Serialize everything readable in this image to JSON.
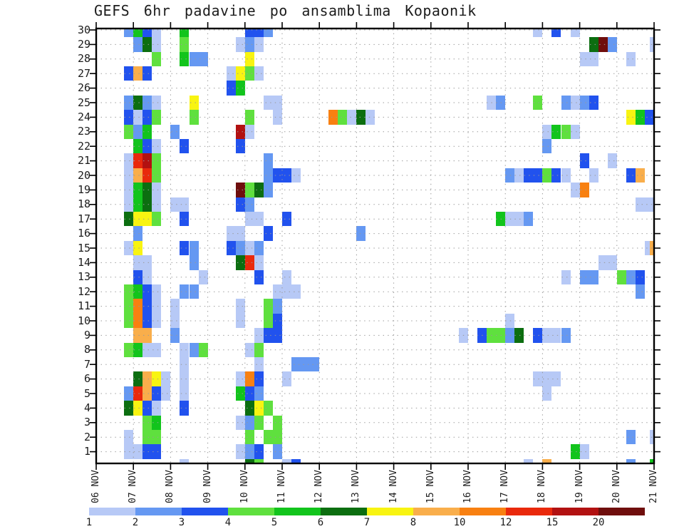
{
  "title": "GEFS 6hr padavine po ansamblima Kopaonik",
  "chart_data": {
    "type": "heatmap",
    "title": "GEFS 6hr padavine po ansamblima Kopaonik",
    "grid": "dotted",
    "legend_position": "bottom",
    "x_axis": {
      "tick_labels": [
        "06 NOV",
        "07 NOV",
        "08 NOV",
        "09 NOV",
        "10 NOV",
        "11 NOV",
        "12 NOV",
        "13 NOV",
        "14 NOV",
        "15 NOV",
        "16 NOV",
        "17 NOV",
        "18 NOV",
        "19 NOV",
        "20 NOV",
        "21 NOV"
      ],
      "steps_per_day": 4,
      "total_columns": 61
    },
    "y_axis": {
      "tick_labels": [
        "30",
        "29",
        "28",
        "27",
        "26",
        "25",
        "24",
        "23",
        "22",
        "21",
        "20",
        "19",
        "18",
        "17",
        "16",
        "15",
        "14",
        "13",
        "12",
        "11",
        "10",
        "9",
        "8",
        "7",
        "6",
        "5",
        "4",
        "3",
        "2",
        "1"
      ]
    },
    "colorbar": {
      "tick_labels": [
        "1",
        "2",
        "3",
        "4",
        "5",
        "6",
        "7",
        "8",
        "10",
        "12",
        "15",
        "20"
      ],
      "colors": [
        "#b7c9f6",
        "#6598f2",
        "#2152ee",
        "#5fe03e",
        "#12c41c",
        "#0c6e10",
        "#f8f411",
        "#f9ae4b",
        "#f88011",
        "#e9290c",
        "#b21111",
        "#6f0e0d"
      ]
    },
    "cells_format": "each cell = [column_index, color_index]; column 0 = 06 NOV 00h, 4 columns per day; color_index refers to colorbar.colors",
    "rows": [
      {
        "member": 30,
        "cells": [
          [
            3,
            1
          ],
          [
            4,
            4
          ],
          [
            5,
            2
          ],
          [
            6,
            0
          ],
          [
            9,
            4
          ],
          [
            16,
            2
          ],
          [
            17,
            2
          ],
          [
            18,
            1
          ],
          [
            47,
            0
          ],
          [
            49,
            2
          ],
          [
            51,
            0
          ]
        ]
      },
      {
        "member": 29,
        "cells": [
          [
            4,
            1
          ],
          [
            5,
            5
          ],
          [
            6,
            0
          ],
          [
            9,
            3
          ],
          [
            15,
            0
          ],
          [
            16,
            1
          ],
          [
            17,
            0
          ],
          [
            53,
            5
          ],
          [
            54,
            11
          ],
          [
            55,
            1
          ],
          [
            60,
            0
          ]
        ]
      },
      {
        "member": 28,
        "cells": [
          [
            6,
            3
          ],
          [
            9,
            4
          ],
          [
            10,
            1
          ],
          [
            11,
            1
          ],
          [
            16,
            6
          ],
          [
            52,
            0
          ],
          [
            53,
            0
          ],
          [
            57,
            0
          ]
        ]
      },
      {
        "member": 27,
        "cells": [
          [
            3,
            2
          ],
          [
            4,
            7
          ],
          [
            5,
            2
          ],
          [
            14,
            0
          ],
          [
            15,
            6
          ],
          [
            16,
            3
          ],
          [
            17,
            0
          ]
        ]
      },
      {
        "member": 26,
        "cells": [
          [
            14,
            2
          ],
          [
            15,
            4
          ]
        ]
      },
      {
        "member": 25,
        "cells": [
          [
            3,
            1
          ],
          [
            4,
            5
          ],
          [
            5,
            1
          ],
          [
            6,
            0
          ],
          [
            10,
            6
          ],
          [
            18,
            0
          ],
          [
            19,
            0
          ],
          [
            42,
            0
          ],
          [
            43,
            1
          ],
          [
            47,
            3
          ],
          [
            50,
            1
          ],
          [
            51,
            0
          ],
          [
            52,
            1
          ],
          [
            53,
            2
          ]
        ]
      },
      {
        "member": 24,
        "cells": [
          [
            3,
            2
          ],
          [
            4,
            0
          ],
          [
            5,
            2
          ],
          [
            6,
            3
          ],
          [
            10,
            3
          ],
          [
            16,
            3
          ],
          [
            19,
            0
          ],
          [
            25,
            8
          ],
          [
            26,
            3
          ],
          [
            27,
            0
          ],
          [
            28,
            5
          ],
          [
            29,
            0
          ],
          [
            57,
            6
          ],
          [
            58,
            4
          ],
          [
            59,
            2
          ],
          [
            60,
            2
          ]
        ]
      },
      {
        "member": 23,
        "cells": [
          [
            3,
            3
          ],
          [
            4,
            1
          ],
          [
            5,
            4
          ],
          [
            8,
            1
          ],
          [
            15,
            10
          ],
          [
            16,
            0
          ],
          [
            48,
            0
          ],
          [
            49,
            4
          ],
          [
            50,
            3
          ],
          [
            51,
            0
          ]
        ]
      },
      {
        "member": 22,
        "cells": [
          [
            4,
            4
          ],
          [
            5,
            2
          ],
          [
            6,
            0
          ],
          [
            9,
            2
          ],
          [
            15,
            2
          ],
          [
            48,
            1
          ]
        ]
      },
      {
        "member": 21,
        "cells": [
          [
            3,
            0
          ],
          [
            4,
            9
          ],
          [
            5,
            10
          ],
          [
            6,
            3
          ],
          [
            18,
            1
          ],
          [
            52,
            2
          ],
          [
            55,
            0
          ]
        ]
      },
      {
        "member": 20,
        "cells": [
          [
            3,
            0
          ],
          [
            4,
            7
          ],
          [
            5,
            9
          ],
          [
            6,
            3
          ],
          [
            18,
            1
          ],
          [
            19,
            2
          ],
          [
            20,
            2
          ],
          [
            21,
            0
          ],
          [
            44,
            1
          ],
          [
            45,
            0
          ],
          [
            46,
            2
          ],
          [
            47,
            2
          ],
          [
            48,
            3
          ],
          [
            49,
            2
          ],
          [
            50,
            0
          ],
          [
            53,
            0
          ],
          [
            57,
            2
          ],
          [
            58,
            7
          ]
        ]
      },
      {
        "member": 19,
        "cells": [
          [
            3,
            0
          ],
          [
            4,
            4
          ],
          [
            5,
            5
          ],
          [
            6,
            0
          ],
          [
            15,
            11
          ],
          [
            16,
            3
          ],
          [
            17,
            5
          ],
          [
            18,
            1
          ],
          [
            51,
            0
          ],
          [
            52,
            8
          ]
        ]
      },
      {
        "member": 18,
        "cells": [
          [
            3,
            0
          ],
          [
            4,
            4
          ],
          [
            5,
            5
          ],
          [
            6,
            0
          ],
          [
            8,
            0
          ],
          [
            9,
            0
          ],
          [
            15,
            2
          ],
          [
            16,
            1
          ],
          [
            58,
            0
          ],
          [
            59,
            0
          ]
        ]
      },
      {
        "member": 17,
        "cells": [
          [
            3,
            5
          ],
          [
            4,
            6
          ],
          [
            5,
            6
          ],
          [
            6,
            3
          ],
          [
            9,
            2
          ],
          [
            16,
            0
          ],
          [
            17,
            0
          ],
          [
            20,
            2
          ],
          [
            43,
            4
          ],
          [
            44,
            0
          ],
          [
            45,
            0
          ],
          [
            46,
            1
          ]
        ]
      },
      {
        "member": 16,
        "cells": [
          [
            4,
            1
          ],
          [
            14,
            0
          ],
          [
            15,
            0
          ],
          [
            18,
            2
          ],
          [
            28,
            1
          ]
        ]
      },
      {
        "member": 15,
        "cells": [
          [
            3,
            0
          ],
          [
            4,
            6
          ],
          [
            9,
            2
          ],
          [
            10,
            1
          ],
          [
            14,
            2
          ],
          [
            15,
            1
          ],
          [
            16,
            0
          ],
          [
            17,
            1
          ],
          [
            59,
            0
          ],
          [
            60,
            7
          ]
        ]
      },
      {
        "member": 14,
        "cells": [
          [
            4,
            0
          ],
          [
            5,
            0
          ],
          [
            10,
            1
          ],
          [
            15,
            5
          ],
          [
            16,
            9
          ],
          [
            17,
            0
          ],
          [
            54,
            0
          ],
          [
            55,
            0
          ]
        ]
      },
      {
        "member": 13,
        "cells": [
          [
            4,
            2
          ],
          [
            5,
            0
          ],
          [
            11,
            0
          ],
          [
            17,
            2
          ],
          [
            20,
            0
          ],
          [
            50,
            0
          ],
          [
            52,
            1
          ],
          [
            53,
            1
          ],
          [
            56,
            3
          ],
          [
            57,
            1
          ],
          [
            58,
            2
          ]
        ]
      },
      {
        "member": 12,
        "cells": [
          [
            3,
            3
          ],
          [
            4,
            4
          ],
          [
            5,
            2
          ],
          [
            6,
            0
          ],
          [
            9,
            1
          ],
          [
            10,
            1
          ],
          [
            19,
            0
          ],
          [
            20,
            0
          ],
          [
            21,
            0
          ],
          [
            58,
            1
          ]
        ]
      },
      {
        "member": 11,
        "cells": [
          [
            3,
            3
          ],
          [
            4,
            8
          ],
          [
            5,
            2
          ],
          [
            6,
            0
          ],
          [
            8,
            0
          ],
          [
            15,
            0
          ],
          [
            18,
            3
          ],
          [
            19,
            1
          ]
        ]
      },
      {
        "member": 10,
        "cells": [
          [
            3,
            3
          ],
          [
            4,
            8
          ],
          [
            5,
            2
          ],
          [
            6,
            0
          ],
          [
            8,
            0
          ],
          [
            15,
            0
          ],
          [
            18,
            3
          ],
          [
            19,
            2
          ],
          [
            44,
            0
          ]
        ]
      },
      {
        "member": 9,
        "cells": [
          [
            4,
            7
          ],
          [
            5,
            7
          ],
          [
            8,
            1
          ],
          [
            17,
            0
          ],
          [
            18,
            2
          ],
          [
            19,
            2
          ],
          [
            39,
            0
          ],
          [
            41,
            2
          ],
          [
            42,
            3
          ],
          [
            43,
            3
          ],
          [
            44,
            1
          ],
          [
            45,
            5
          ],
          [
            47,
            2
          ],
          [
            48,
            0
          ],
          [
            49,
            0
          ],
          [
            50,
            1
          ]
        ]
      },
      {
        "member": 8,
        "cells": [
          [
            3,
            3
          ],
          [
            4,
            4
          ],
          [
            5,
            0
          ],
          [
            6,
            0
          ],
          [
            9,
            0
          ],
          [
            10,
            1
          ],
          [
            11,
            3
          ],
          [
            16,
            0
          ],
          [
            17,
            3
          ]
        ]
      },
      {
        "member": 7,
        "cells": [
          [
            9,
            0
          ],
          [
            17,
            0
          ],
          [
            21,
            1
          ],
          [
            22,
            1
          ],
          [
            23,
            1
          ]
        ]
      },
      {
        "member": 6,
        "cells": [
          [
            4,
            5
          ],
          [
            5,
            7
          ],
          [
            6,
            6
          ],
          [
            7,
            0
          ],
          [
            9,
            0
          ],
          [
            15,
            0
          ],
          [
            16,
            8
          ],
          [
            17,
            2
          ],
          [
            20,
            0
          ],
          [
            47,
            0
          ],
          [
            48,
            0
          ],
          [
            49,
            0
          ]
        ]
      },
      {
        "member": 5,
        "cells": [
          [
            3,
            1
          ],
          [
            4,
            9
          ],
          [
            5,
            7
          ],
          [
            6,
            2
          ],
          [
            7,
            0
          ],
          [
            9,
            0
          ],
          [
            15,
            4
          ],
          [
            16,
            2
          ],
          [
            17,
            1
          ],
          [
            48,
            0
          ]
        ]
      },
      {
        "member": 4,
        "cells": [
          [
            3,
            5
          ],
          [
            4,
            6
          ],
          [
            5,
            2
          ],
          [
            6,
            0
          ],
          [
            9,
            2
          ],
          [
            16,
            5
          ],
          [
            17,
            6
          ],
          [
            18,
            3
          ]
        ]
      },
      {
        "member": 3,
        "cells": [
          [
            5,
            3
          ],
          [
            6,
            4
          ],
          [
            15,
            0
          ],
          [
            16,
            1
          ],
          [
            17,
            3
          ],
          [
            19,
            3
          ]
        ]
      },
      {
        "member": 2,
        "cells": [
          [
            3,
            0
          ],
          [
            5,
            3
          ],
          [
            6,
            3
          ],
          [
            16,
            3
          ],
          [
            18,
            3
          ],
          [
            19,
            3
          ],
          [
            57,
            1
          ],
          [
            60,
            0
          ]
        ]
      },
      {
        "member": 1,
        "cells": [
          [
            3,
            0
          ],
          [
            4,
            0
          ],
          [
            5,
            2
          ],
          [
            6,
            2
          ],
          [
            15,
            0
          ],
          [
            16,
            1
          ],
          [
            17,
            2
          ],
          [
            19,
            1
          ],
          [
            51,
            4
          ],
          [
            52,
            0
          ]
        ]
      },
      {
        "member": 0,
        "cells": [
          [
            9,
            0
          ],
          [
            16,
            5
          ],
          [
            17,
            3
          ],
          [
            20,
            0
          ],
          [
            21,
            2
          ],
          [
            46,
            0
          ],
          [
            48,
            7
          ],
          [
            57,
            1
          ],
          [
            60,
            4
          ]
        ]
      }
    ]
  }
}
